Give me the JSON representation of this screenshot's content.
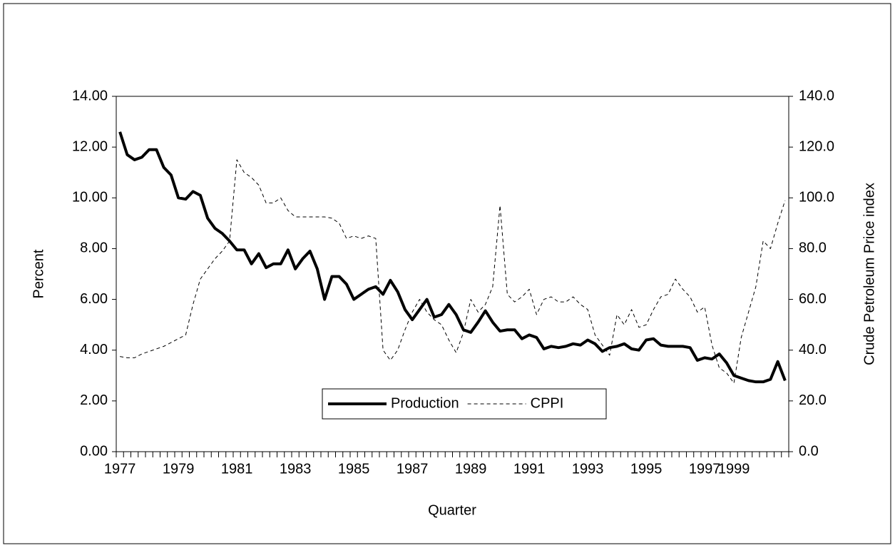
{
  "chart_data": {
    "type": "line",
    "x_label": "Quarter",
    "y_label": "Percent",
    "y2_label": "Crude Petroleum Price index",
    "categories": [
      "1977",
      null,
      null,
      null,
      null,
      null,
      null,
      null,
      "1979",
      null,
      null,
      null,
      null,
      null,
      null,
      null,
      "1981",
      null,
      null,
      null,
      null,
      null,
      null,
      null,
      "1983",
      null,
      null,
      null,
      null,
      null,
      null,
      null,
      "1985",
      null,
      null,
      null,
      null,
      null,
      null,
      null,
      "1987",
      null,
      null,
      null,
      null,
      null,
      null,
      null,
      "1989",
      null,
      null,
      null,
      null,
      null,
      null,
      null,
      "1991",
      null,
      null,
      null,
      null,
      null,
      null,
      null,
      "1993",
      null,
      null,
      null,
      null,
      null,
      null,
      null,
      "1995",
      null,
      null,
      null,
      null,
      null,
      null,
      null,
      "1997",
      null,
      null,
      null,
      "1999",
      null,
      null,
      null,
      null,
      null,
      null,
      null
    ],
    "series": [
      {
        "name": "Production",
        "color": "#000000",
        "style": "solid",
        "values": [
          12.6,
          11.7,
          11.5,
          11.6,
          11.9,
          11.9,
          11.2,
          10.9,
          10.0,
          9.95,
          10.25,
          10.1,
          9.2,
          8.8,
          8.6,
          8.3,
          7.95,
          7.95,
          7.4,
          7.8,
          7.25,
          7.4,
          7.4,
          7.95,
          7.2,
          7.6,
          7.9,
          7.2,
          6.0,
          6.9,
          6.9,
          6.6,
          6.0,
          6.2,
          6.4,
          6.5,
          6.2,
          6.75,
          6.3,
          5.6,
          5.2,
          5.6,
          6.0,
          5.3,
          5.4,
          5.8,
          5.4,
          4.8,
          4.7,
          5.1,
          5.55,
          5.1,
          4.75,
          4.8,
          4.8,
          4.45,
          4.6,
          4.5,
          4.05,
          4.15,
          4.1,
          4.15,
          4.25,
          4.2,
          4.4,
          4.25,
          3.95,
          4.1,
          4.15,
          4.25,
          4.05,
          4.0,
          4.4,
          4.45,
          4.2,
          4.15,
          4.15,
          4.15,
          4.1,
          3.6,
          3.7,
          3.65,
          3.85,
          3.5,
          3.0,
          2.9,
          2.8,
          2.75,
          2.75,
          2.85,
          3.55,
          2.8
        ]
      },
      {
        "name": "CPPI",
        "color": "#000000",
        "style": "dashed",
        "axis": "y2",
        "values": [
          37.5,
          37,
          37,
          38.5,
          39.5,
          40.5,
          41.5,
          43,
          44.5,
          46,
          58,
          68,
          72,
          76,
          79,
          83,
          115,
          110,
          108,
          105,
          98,
          98,
          100,
          95,
          92.5,
          92.5,
          92.5,
          92.5,
          92.5,
          92,
          90,
          84,
          85,
          84,
          85,
          84,
          40,
          36,
          40,
          48,
          55,
          60,
          55,
          52,
          50,
          44,
          39,
          47,
          60,
          55,
          58,
          65,
          97,
          62,
          59,
          61,
          64,
          54,
          60,
          61,
          59,
          59,
          61,
          58,
          56,
          46,
          42,
          38,
          54,
          50,
          56,
          49,
          50,
          56,
          61,
          62,
          68,
          64,
          61,
          55,
          57,
          42,
          33,
          31,
          27,
          45,
          55,
          65,
          83,
          80,
          90,
          99
        ]
      }
    ],
    "ylim": [
      0,
      14
    ],
    "yticks": [
      {
        "value": 0,
        "label": "0.00"
      },
      {
        "value": 2,
        "label": "2.00"
      },
      {
        "value": 4,
        "label": "4.00"
      },
      {
        "value": 6,
        "label": "6.00"
      },
      {
        "value": 8,
        "label": "8.00"
      },
      {
        "value": 10,
        "label": "10.00"
      },
      {
        "value": 12,
        "label": "12.00"
      },
      {
        "value": 14,
        "label": "14.00"
      }
    ],
    "y2lim": [
      0,
      140
    ],
    "y2ticks": [
      {
        "value": 0,
        "label": "0.0"
      },
      {
        "value": 20,
        "label": "20.0"
      },
      {
        "value": 40,
        "label": "40.0"
      },
      {
        "value": 60,
        "label": "60.0"
      },
      {
        "value": 80,
        "label": "80.0"
      },
      {
        "value": 100,
        "label": "100.0"
      },
      {
        "value": 120,
        "label": "120.0"
      },
      {
        "value": 140,
        "label": "140.0"
      }
    ],
    "legend": "bottom-center"
  }
}
